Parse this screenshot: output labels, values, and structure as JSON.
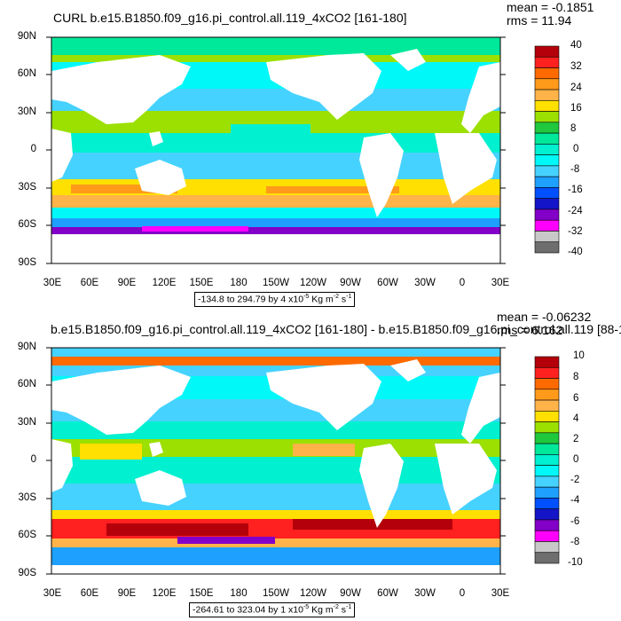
{
  "panels": [
    {
      "title": "CURL b.e15.B1850.f09_g16.pi_control.all.119_4xCO2 [161-180]",
      "stats": {
        "mean": "mean = -0.1851",
        "rms": "rms = 11.94"
      },
      "units": {
        "range": "-134.8 to 294.79 by 4 x10",
        "exp": "-5",
        "unit": " Kg m",
        "exp2": "-2",
        "tail": " s",
        "exp3": "-1"
      },
      "y_ticks": [
        "90N",
        "60N",
        "30N",
        "0",
        "30S",
        "60S",
        "90S"
      ],
      "x_ticks": [
        "30E",
        "60E",
        "90E",
        "120E",
        "150E",
        "180",
        "150W",
        "120W",
        "90W",
        "60W",
        "30W",
        "0",
        "30E"
      ],
      "colorbar_labels": [
        "40",
        "32",
        "24",
        "16",
        "8",
        "0",
        "-8",
        "-16",
        "-24",
        "-32",
        "-40"
      ]
    },
    {
      "title": "b.e15.B1850.f09_g16.pi_control.all.119_4xCO2 [161-180] - b.e15.B1850.f09_g16.pi_control.all.119 [88-1",
      "stats": {
        "mean": "mean = -0.06232",
        "rms": "rms = 6.162"
      },
      "units": {
        "range": "-264.61 to 323.04 by 1 x10",
        "exp": "-5",
        "unit": " Kg m",
        "exp2": "-2",
        "tail": " s",
        "exp3": "-1"
      },
      "y_ticks": [
        "90N",
        "60N",
        "30N",
        "0",
        "30S",
        "60S",
        "90S"
      ],
      "x_ticks": [
        "30E",
        "60E",
        "90E",
        "120E",
        "150E",
        "180",
        "150W",
        "120W",
        "90W",
        "60W",
        "30W",
        "0",
        "30E"
      ],
      "colorbar_labels": [
        "10",
        "8",
        "6",
        "4",
        "2",
        "0",
        "-2",
        "-4",
        "-6",
        "-8",
        "-10"
      ]
    }
  ],
  "colorbar_colors": [
    "#b4000a",
    "#ff2020",
    "#ff6a00",
    "#ff9a1a",
    "#ffb348",
    "#ffe000",
    "#9be000",
    "#1fc83c",
    "#00e89a",
    "#00f0d0",
    "#00f8f8",
    "#46d2ff",
    "#1ea0ff",
    "#0050ff",
    "#1414c8",
    "#8200c8",
    "#ff00ff",
    "#c8c8c8",
    "#6e6e6e"
  ],
  "map_colors": {
    "ocean_pos": "#ffe000",
    "ocean_warm": "#ff9a1a",
    "ocean_mid": "#00f0d0",
    "ocean_cool": "#46d2ff",
    "ocean_green": "#9be000",
    "land": "#ffffff"
  },
  "chart_data": [
    {
      "type": "heatmap",
      "title": "CURL b.e15.B1850.f09_g16.pi_control.all.119_4xCO2 [161-180]",
      "x_ticks": [
        "30E",
        "60E",
        "90E",
        "120E",
        "150E",
        "180",
        "150W",
        "120W",
        "90W",
        "60W",
        "30W",
        "0",
        "30E"
      ],
      "y_ticks": [
        "90N",
        "60N",
        "30N",
        "0",
        "30S",
        "60S",
        "90S"
      ],
      "contour_levels": [
        -40,
        -36,
        -32,
        -28,
        -24,
        -20,
        -16,
        -12,
        -8,
        -4,
        0,
        4,
        8,
        12,
        16,
        20,
        24,
        28,
        32,
        36,
        40
      ],
      "colorbar_labels": [
        "40",
        "32",
        "24",
        "16",
        "8",
        "0",
        "-8",
        "-16",
        "-24",
        "-32",
        "-40"
      ],
      "mean": -0.1851,
      "rms": 11.94,
      "range": [
        -134.8,
        294.79
      ],
      "units": "x10^-5 Kg m^-2 s^-1"
    },
    {
      "type": "heatmap",
      "title": "b.e15.B1850.f09_g16.pi_control.all.119_4xCO2 [161-180] - b.e15.B1850.f09_g16.pi_control.all.119 [88-1",
      "x_ticks": [
        "30E",
        "60E",
        "90E",
        "120E",
        "150E",
        "180",
        "150W",
        "120W",
        "90W",
        "60W",
        "30W",
        "0",
        "30E"
      ],
      "y_ticks": [
        "90N",
        "60N",
        "30N",
        "0",
        "30S",
        "60S",
        "90S"
      ],
      "contour_levels": [
        -10,
        -9,
        -8,
        -7,
        -6,
        -5,
        -4,
        -3,
        -2,
        -1,
        0,
        1,
        2,
        3,
        4,
        5,
        6,
        7,
        8,
        9,
        10
      ],
      "colorbar_labels": [
        "10",
        "8",
        "6",
        "4",
        "2",
        "0",
        "-2",
        "-4",
        "-6",
        "-8",
        "-10"
      ],
      "mean": -0.06232,
      "rms": 6.162,
      "range": [
        -264.61,
        323.04
      ],
      "units": "x10^-5 Kg m^-2 s^-1"
    }
  ]
}
